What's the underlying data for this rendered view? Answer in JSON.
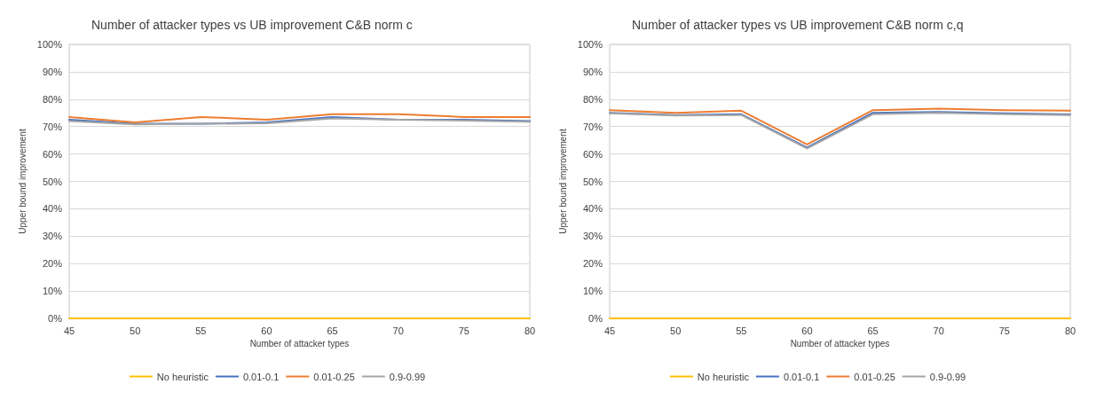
{
  "chart_data": [
    {
      "type": "line",
      "title": "Number of attacker types vs UB improvement C&B norm c",
      "xlabel": "Number of attacker types",
      "ylabel": "Upper bound improvement",
      "x": [
        45,
        50,
        55,
        60,
        65,
        70,
        75,
        80
      ],
      "xlim": [
        45,
        80
      ],
      "xticks": [
        45,
        50,
        55,
        60,
        65,
        70,
        75,
        80
      ],
      "ylim": [
        0,
        100
      ],
      "yticks": [
        {
          "value": 0,
          "label": "0%"
        },
        {
          "value": 10,
          "label": "10%"
        },
        {
          "value": 20,
          "label": "20%"
        },
        {
          "value": 30,
          "label": "30%"
        },
        {
          "value": 40,
          "label": "40%"
        },
        {
          "value": 50,
          "label": "50%"
        },
        {
          "value": 60,
          "label": "60%"
        },
        {
          "value": 70,
          "label": "70%"
        },
        {
          "value": 80,
          "label": "80%"
        },
        {
          "value": 90,
          "label": "90%"
        },
        {
          "value": 100,
          "label": "100%"
        }
      ],
      "grid": "y",
      "legend": "bottom",
      "marker": "none",
      "line_style": "solid",
      "series": [
        {
          "name": "No heuristic",
          "color": "#ffc000",
          "values": [
            0,
            0,
            0,
            0,
            0,
            0,
            0,
            0
          ]
        },
        {
          "name": "0.01-0.1",
          "color": "#4472c4",
          "values": [
            72.5,
            71,
            71,
            71.5,
            73.5,
            72.5,
            72.5,
            72
          ]
        },
        {
          "name": "0.01-0.25",
          "color": "#ed7d31",
          "values": [
            73.5,
            71.5,
            73.5,
            72.5,
            74.5,
            74.5,
            73.5,
            73.5
          ]
        },
        {
          "name": "0.9-0.99",
          "color": "#a5a5a5",
          "values": [
            72,
            70.8,
            71,
            71.2,
            73,
            72.5,
            72.2,
            71.8
          ]
        }
      ]
    },
    {
      "type": "line",
      "title": "Number of attacker types vs UB improvement C&B norm c,q",
      "xlabel": "Number of attacker types",
      "ylabel": "Upper bound improvement",
      "x": [
        45,
        50,
        55,
        60,
        65,
        70,
        75,
        80
      ],
      "xlim": [
        45,
        80
      ],
      "xticks": [
        45,
        50,
        55,
        60,
        65,
        70,
        75,
        80
      ],
      "ylim": [
        0,
        100
      ],
      "yticks": [
        {
          "value": 0,
          "label": "0%"
        },
        {
          "value": 10,
          "label": "10%"
        },
        {
          "value": 20,
          "label": "20%"
        },
        {
          "value": 30,
          "label": "30%"
        },
        {
          "value": 40,
          "label": "40%"
        },
        {
          "value": 50,
          "label": "50%"
        },
        {
          "value": 60,
          "label": "60%"
        },
        {
          "value": 70,
          "label": "70%"
        },
        {
          "value": 80,
          "label": "80%"
        },
        {
          "value": 90,
          "label": "90%"
        },
        {
          "value": 100,
          "label": "100%"
        }
      ],
      "grid": "y",
      "legend": "bottom",
      "marker": "none",
      "line_style": "solid",
      "series": [
        {
          "name": "No heuristic",
          "color": "#ffc000",
          "values": [
            0,
            0,
            0,
            0,
            0,
            0,
            0,
            0
          ]
        },
        {
          "name": "0.01-0.1",
          "color": "#4472c4",
          "values": [
            75,
            74.2,
            74.5,
            62.3,
            75,
            75.3,
            74.8,
            74.4
          ]
        },
        {
          "name": "0.01-0.25",
          "color": "#ed7d31",
          "values": [
            76,
            75,
            75.8,
            63.5,
            76,
            76.5,
            76,
            75.8
          ]
        },
        {
          "name": "0.9-0.99",
          "color": "#a5a5a5",
          "values": [
            74.8,
            74,
            74.2,
            62,
            74.5,
            75,
            74.5,
            74.2
          ]
        }
      ]
    }
  ]
}
